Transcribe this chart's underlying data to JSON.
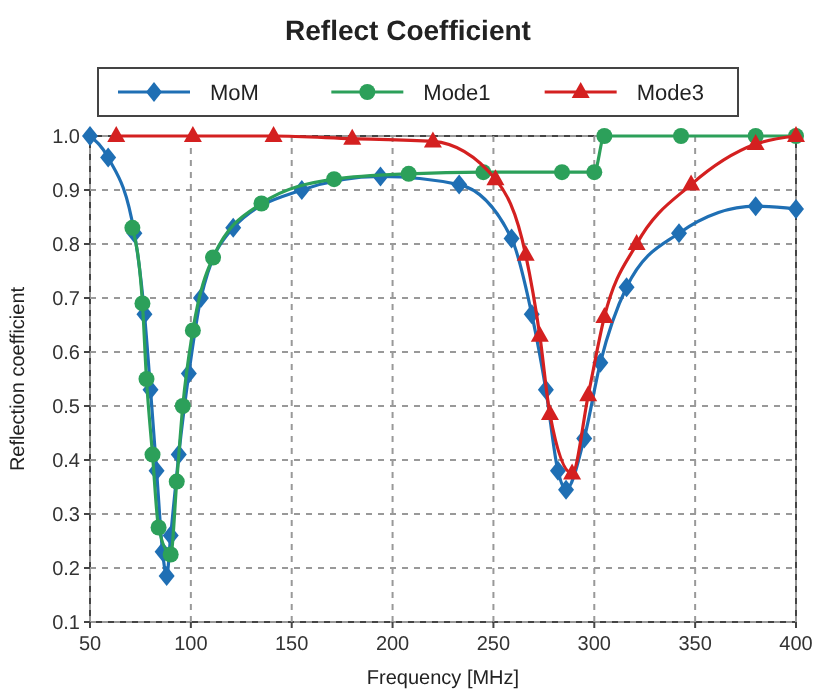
{
  "chart_data": {
    "type": "line",
    "title": "Reflect Coefficient",
    "xlabel": "Frequency [MHz]",
    "ylabel": "Reflection coefficient",
    "xlim": [
      50,
      400
    ],
    "xticks": [
      50,
      100,
      150,
      200,
      250,
      300,
      350,
      400
    ],
    "ylim": [
      0.1,
      1.0
    ],
    "yticks": [
      0.1,
      0.2,
      0.3,
      0.4,
      0.5,
      0.6,
      0.7,
      0.8,
      0.9,
      {
        "value": 1.0,
        "label": "1.0"
      }
    ],
    "grid": true,
    "legend": "top",
    "line_style": "solid",
    "series": [
      {
        "name": "MoM",
        "color": "#1f6fb4",
        "marker": "diamond",
        "x": [
          50,
          59,
          72,
          77,
          80,
          83,
          86,
          88,
          90,
          94,
          99,
          105,
          121,
          155,
          194,
          233,
          259,
          269,
          276,
          282,
          286,
          295,
          303,
          316,
          342,
          380,
          400
        ],
        "values": [
          1.0,
          0.96,
          0.82,
          0.67,
          0.53,
          0.38,
          0.23,
          0.185,
          0.26,
          0.41,
          0.56,
          0.7,
          0.83,
          0.9,
          0.925,
          0.91,
          0.81,
          0.67,
          0.53,
          0.38,
          0.345,
          0.44,
          0.58,
          0.72,
          0.82,
          0.87,
          0.865
        ]
      },
      {
        "name": "Mode1",
        "color": "#2ca05a",
        "marker": "circle",
        "x": [
          71,
          76,
          78,
          81,
          84,
          90,
          93,
          96,
          101,
          111,
          135,
          171,
          208,
          245,
          284,
          300,
          305,
          343,
          380,
          400
        ],
        "values": [
          0.83,
          0.69,
          0.55,
          0.41,
          0.275,
          0.225,
          0.36,
          0.5,
          0.64,
          0.775,
          0.875,
          0.92,
          0.93,
          0.933,
          0.933,
          0.933,
          1.0,
          1.0,
          1.0,
          1.0
        ]
      },
      {
        "name": "Mode3",
        "color": "#d42020",
        "marker": "triangle",
        "x": [
          63,
          101,
          141,
          180,
          220,
          251,
          266,
          273,
          278,
          289,
          297,
          305,
          321,
          348,
          380,
          400
        ],
        "values": [
          1.0,
          1.0,
          1.0,
          0.995,
          0.99,
          0.92,
          0.78,
          0.63,
          0.485,
          0.375,
          0.52,
          0.665,
          0.8,
          0.91,
          0.985,
          1.0
        ]
      }
    ]
  }
}
